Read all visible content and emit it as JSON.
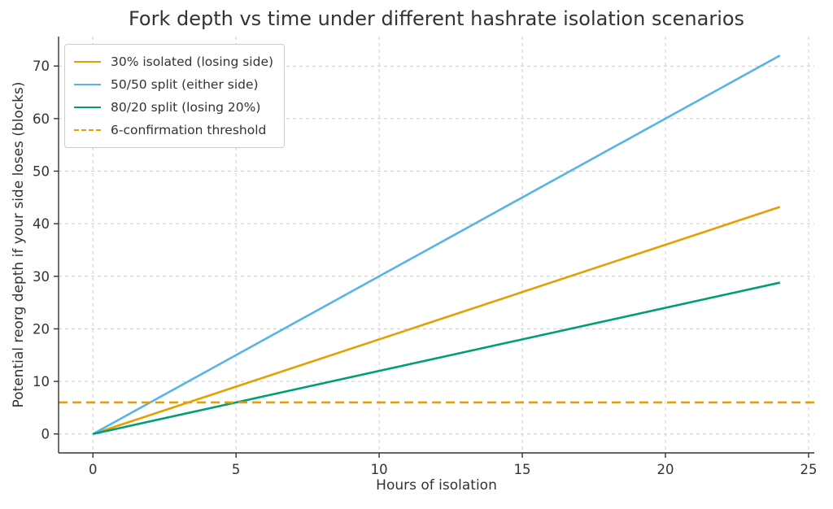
{
  "chart_data": {
    "type": "line",
    "title": "Fork depth vs time under different hashrate isolation scenarios",
    "xlabel": "Hours of isolation",
    "ylabel": "Potential reorg depth if your side loses (blocks)",
    "xlim": [
      -1.2,
      25.2
    ],
    "ylim": [
      -3.6,
      75.6
    ],
    "x_ticks": [
      0,
      5,
      10,
      15,
      20,
      25
    ],
    "y_ticks": [
      0,
      10,
      20,
      30,
      40,
      50,
      60,
      70
    ],
    "grid": true,
    "legend_position": "upper left",
    "axis_color": "#333333",
    "text_color": "#333333",
    "grid_color": "#cccccc",
    "series": [
      {
        "name": "30% isolated (losing side)",
        "color": "#E69F00",
        "style": "solid",
        "blocks_per_hour": 1.8,
        "x": [
          0,
          24
        ],
        "y": [
          0,
          43.2
        ]
      },
      {
        "name": "50/50 split (either side)",
        "color": "#56B4E9",
        "style": "solid",
        "blocks_per_hour": 3.0,
        "x": [
          0,
          24
        ],
        "y": [
          0,
          72
        ]
      },
      {
        "name": "80/20 split (losing 20%)",
        "color": "#009E73",
        "style": "solid",
        "blocks_per_hour": 1.2,
        "x": [
          0,
          24
        ],
        "y": [
          0,
          28.8
        ]
      },
      {
        "name": "6-confirmation threshold",
        "color": "#E69F00",
        "style": "dashed",
        "threshold": 6,
        "x": [
          -1.2,
          25.2
        ],
        "y": [
          6,
          6
        ]
      }
    ]
  }
}
